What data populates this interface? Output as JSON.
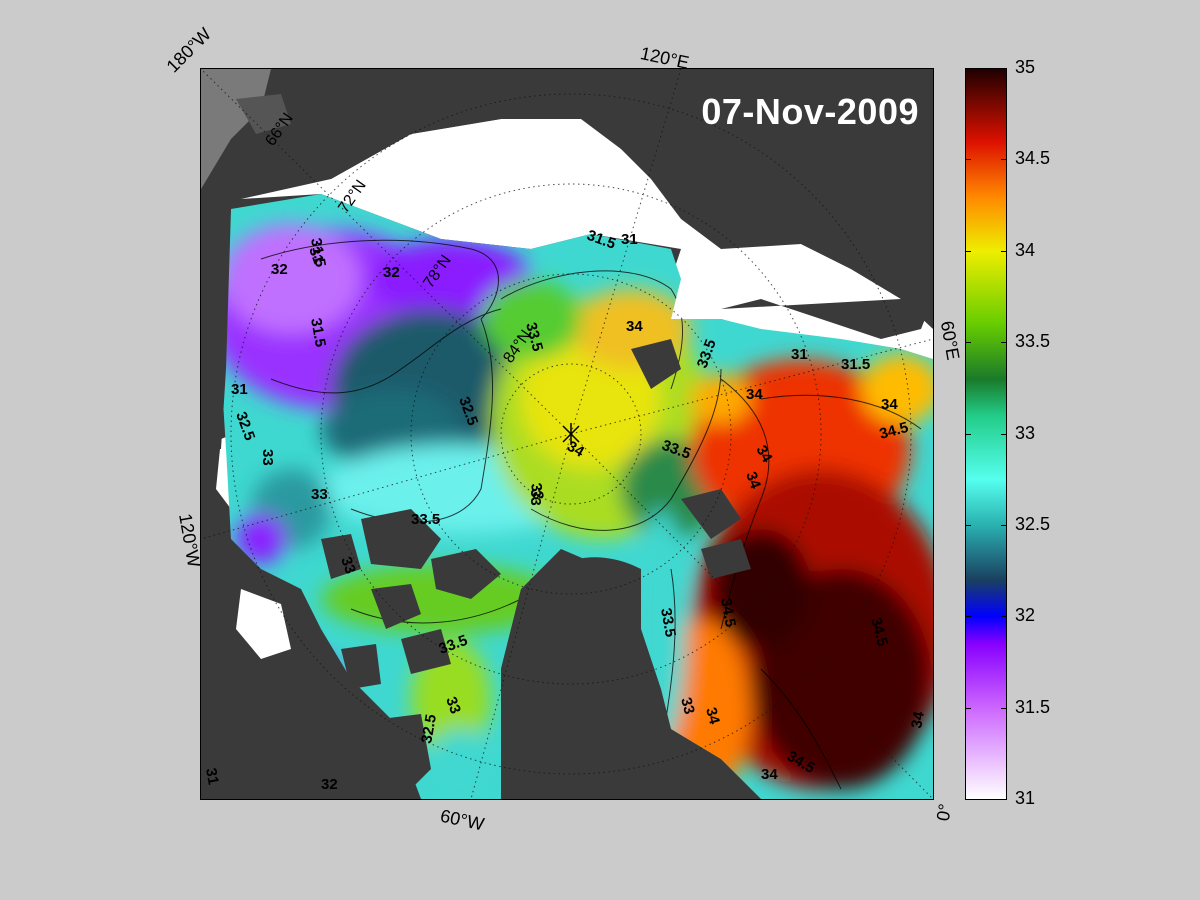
{
  "map": {
    "date": "07-Nov-2009",
    "edge_labels": [
      "180°W",
      "120°E",
      "60°E",
      "0°",
      "60°W",
      "120°W"
    ],
    "latitude_labels": [
      "66°N",
      "72°N",
      "78°N",
      "84°N"
    ],
    "contour_labels": [
      "31",
      "31.5",
      "32",
      "32.5",
      "33",
      "33.5",
      "34",
      "34.5"
    ],
    "colors": {
      "land": "#3a3a3a",
      "ice": "#ffffff",
      "background": "#cbcbcb"
    }
  },
  "colorbar": {
    "min": 31,
    "max": 35,
    "tick_labels": [
      "35",
      "34.5",
      "34",
      "33.5",
      "33",
      "32.5",
      "32",
      "31.5",
      "31"
    ],
    "stops": [
      {
        "v": 31.0,
        "c": "#ffffff"
      },
      {
        "v": 31.5,
        "c": "#cc66ff"
      },
      {
        "v": 31.85,
        "c": "#8800ff"
      },
      {
        "v": 32.0,
        "c": "#0000ff"
      },
      {
        "v": 32.2,
        "c": "#1a4060"
      },
      {
        "v": 32.5,
        "c": "#2ab0b0"
      },
      {
        "v": 32.75,
        "c": "#55ffee"
      },
      {
        "v": 33.1,
        "c": "#22cc88"
      },
      {
        "v": 33.3,
        "c": "#1a7a2a"
      },
      {
        "v": 33.6,
        "c": "#66cc00"
      },
      {
        "v": 34.0,
        "c": "#eeee00"
      },
      {
        "v": 34.3,
        "c": "#ff8800"
      },
      {
        "v": 34.6,
        "c": "#dd1100"
      },
      {
        "v": 35.0,
        "c": "#200000"
      }
    ]
  }
}
